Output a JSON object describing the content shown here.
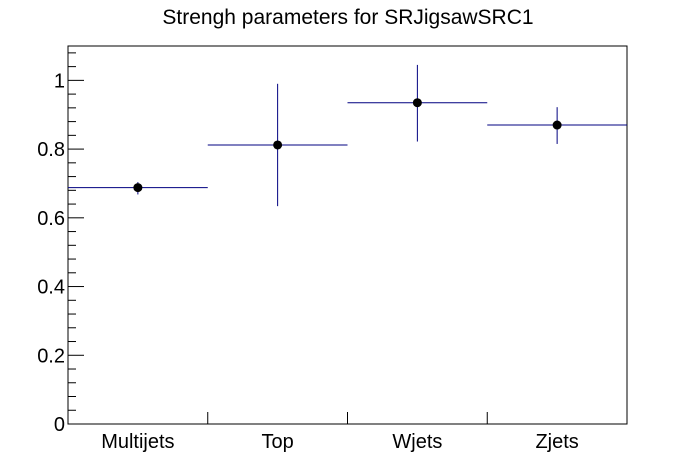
{
  "chart_data": {
    "type": "scatter",
    "title": "Strengh parameters for SRJigsawSRC1",
    "xlabel": "",
    "ylabel": "",
    "categories": [
      "Multijets",
      "Top",
      "Wjets",
      "Zjets"
    ],
    "series": [
      {
        "values": [
          0.688,
          0.812,
          0.935,
          0.87
        ],
        "err_low": [
          0.02,
          0.178,
          0.113,
          0.055
        ],
        "err_high": [
          0.016,
          0.178,
          0.11,
          0.052
        ]
      }
    ],
    "ylim": [
      0,
      1.1
    ],
    "y_ticks": [
      {
        "value": 0,
        "label": "0"
      },
      {
        "value": 0.2,
        "label": "0.2"
      },
      {
        "value": 0.4,
        "label": "0.4"
      },
      {
        "value": 0.6,
        "label": "0.6"
      },
      {
        "value": 0.8,
        "label": "0.8"
      },
      {
        "value": 1,
        "label": "1"
      }
    ],
    "grid": false,
    "legend": "none",
    "colors": {
      "bar_line": "#000080",
      "marker": "#000000",
      "axis": "#000000"
    }
  }
}
